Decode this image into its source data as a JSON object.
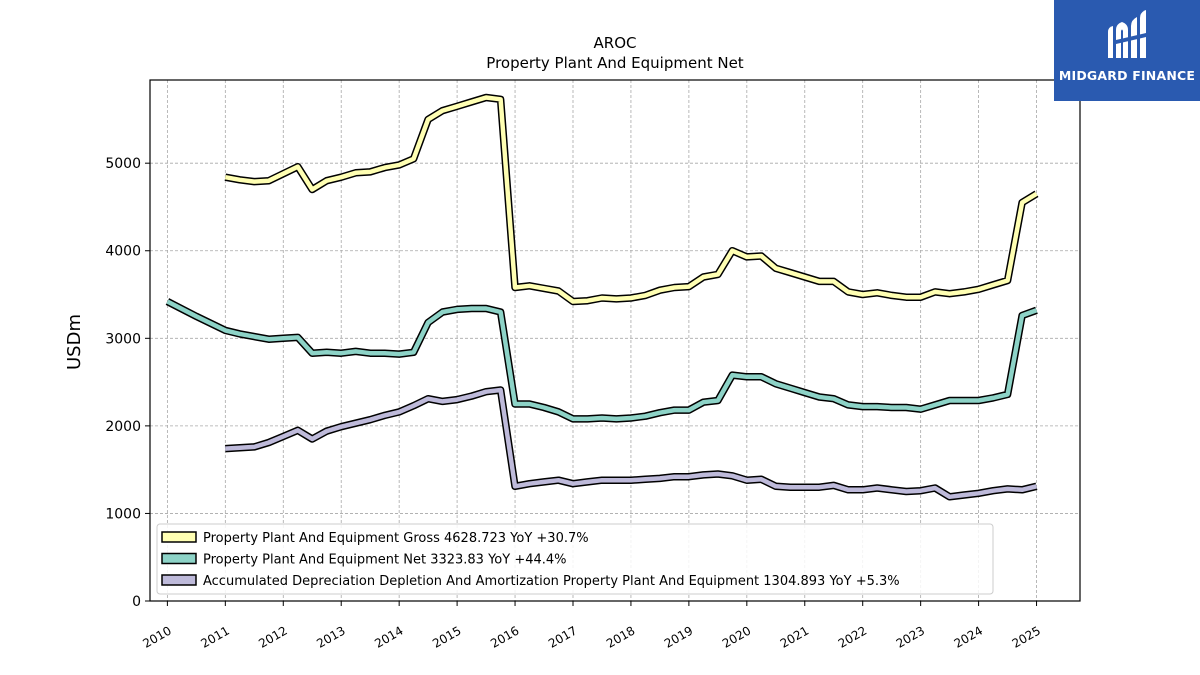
{
  "chart_data": {
    "type": "line",
    "title": "AROC",
    "subtitle": "Property Plant And Equipment Net",
    "ylabel": "USDm",
    "xlabel": "",
    "ylim": [
      0,
      5950
    ],
    "xlim": [
      2009.7,
      2025.75
    ],
    "yticks": [
      0,
      1000,
      2000,
      3000,
      4000,
      5000
    ],
    "xticks": [
      "2010",
      "2011",
      "2012",
      "2013",
      "2014",
      "2015",
      "2016",
      "2017",
      "2018",
      "2019",
      "2020",
      "2021",
      "2022",
      "2023",
      "2024",
      "2025"
    ],
    "grid": true,
    "legend_position": "lower-left",
    "series": [
      {
        "name": "Property Plant And Equipment Gross  4628.723 YoY +30.7%",
        "color": "#ffffb3",
        "x": [
          2011.0,
          2011.25,
          2011.5,
          2011.75,
          2012.0,
          2012.25,
          2012.5,
          2012.75,
          2013.0,
          2013.25,
          2013.5,
          2013.75,
          2014.0,
          2014.25,
          2014.5,
          2014.75,
          2015.0,
          2015.25,
          2015.5,
          2015.75,
          2016.0,
          2016.25,
          2016.5,
          2016.75,
          2017.0,
          2017.25,
          2017.5,
          2017.75,
          2018.0,
          2018.25,
          2018.5,
          2018.75,
          2019.0,
          2019.25,
          2019.5,
          2019.75,
          2020.0,
          2020.25,
          2020.5,
          2020.75,
          2021.0,
          2021.25,
          2021.5,
          2021.75,
          2022.0,
          2022.25,
          2022.5,
          2022.75,
          2023.0,
          2023.25,
          2023.5,
          2023.75,
          2024.0,
          2024.25,
          2024.5,
          2024.75,
          2025.0
        ],
        "values": [
          4840,
          4810,
          4790,
          4800,
          4880,
          4960,
          4700,
          4800,
          4840,
          4890,
          4900,
          4950,
          4980,
          5050,
          5500,
          5600,
          5650,
          5700,
          5750,
          5730,
          3580,
          3600,
          3570,
          3540,
          3420,
          3430,
          3460,
          3450,
          3460,
          3490,
          3550,
          3580,
          3590,
          3700,
          3730,
          4000,
          3930,
          3940,
          3800,
          3750,
          3700,
          3650,
          3650,
          3530,
          3500,
          3520,
          3490,
          3470,
          3470,
          3530,
          3510,
          3530,
          3560,
          3610,
          3660,
          4550,
          4650
        ]
      },
      {
        "name": "Property Plant And Equipment Net  3323.83 YoY +44.4%",
        "color": "#8dd3c7",
        "x": [
          2010.0,
          2010.5,
          2011.0,
          2011.25,
          2011.5,
          2011.75,
          2012.0,
          2012.25,
          2012.5,
          2012.75,
          2013.0,
          2013.25,
          2013.5,
          2013.75,
          2014.0,
          2014.25,
          2014.5,
          2014.75,
          2015.0,
          2015.25,
          2015.5,
          2015.75,
          2016.0,
          2016.25,
          2016.5,
          2016.75,
          2017.0,
          2017.25,
          2017.5,
          2017.75,
          2018.0,
          2018.25,
          2018.5,
          2018.75,
          2019.0,
          2019.25,
          2019.5,
          2019.75,
          2020.0,
          2020.25,
          2020.5,
          2020.75,
          2021.0,
          2021.25,
          2021.5,
          2021.75,
          2022.0,
          2022.25,
          2022.5,
          2022.75,
          2023.0,
          2023.25,
          2023.5,
          2023.75,
          2024.0,
          2024.25,
          2024.5,
          2024.75,
          2025.0
        ],
        "values": [
          3420,
          3250,
          3090,
          3050,
          3020,
          2990,
          3000,
          3010,
          2830,
          2840,
          2830,
          2850,
          2830,
          2830,
          2820,
          2840,
          3180,
          3300,
          3330,
          3340,
          3340,
          3300,
          2250,
          2250,
          2210,
          2160,
          2080,
          2080,
          2090,
          2080,
          2090,
          2110,
          2150,
          2180,
          2180,
          2270,
          2290,
          2580,
          2560,
          2560,
          2480,
          2430,
          2380,
          2330,
          2310,
          2240,
          2220,
          2220,
          2210,
          2210,
          2190,
          2240,
          2290,
          2290,
          2290,
          2320,
          2360,
          3260,
          3320
        ]
      },
      {
        "name": "Accumulated Depreciation Depletion And Amortization Property Plant And Equipment  1304.893 YoY +5.3%",
        "color": "#bebada",
        "x": [
          2011.0,
          2011.25,
          2011.5,
          2011.75,
          2012.0,
          2012.25,
          2012.5,
          2012.75,
          2013.0,
          2013.25,
          2013.5,
          2013.75,
          2014.0,
          2014.25,
          2014.5,
          2014.75,
          2015.0,
          2015.25,
          2015.5,
          2015.75,
          2016.0,
          2016.25,
          2016.5,
          2016.75,
          2017.0,
          2017.25,
          2017.5,
          2017.75,
          2018.0,
          2018.25,
          2018.5,
          2018.75,
          2019.0,
          2019.25,
          2019.5,
          2019.75,
          2020.0,
          2020.25,
          2020.5,
          2020.75,
          2021.0,
          2021.25,
          2021.5,
          2021.75,
          2022.0,
          2022.25,
          2022.5,
          2022.75,
          2023.0,
          2023.25,
          2023.5,
          2023.75,
          2024.0,
          2024.25,
          2024.5,
          2024.75,
          2025.0
        ],
        "values": [
          1740,
          1750,
          1760,
          1810,
          1880,
          1950,
          1850,
          1940,
          1990,
          2030,
          2070,
          2120,
          2160,
          2230,
          2310,
          2280,
          2300,
          2340,
          2390,
          2410,
          1310,
          1340,
          1360,
          1380,
          1340,
          1360,
          1380,
          1380,
          1380,
          1390,
          1400,
          1420,
          1420,
          1440,
          1450,
          1430,
          1380,
          1390,
          1310,
          1300,
          1300,
          1300,
          1320,
          1270,
          1270,
          1290,
          1270,
          1250,
          1260,
          1290,
          1190,
          1210,
          1230,
          1260,
          1280,
          1270,
          1310
        ]
      }
    ]
  },
  "logo": {
    "text": "MIDGARD FINANCE",
    "background": "#2a5ab0"
  }
}
